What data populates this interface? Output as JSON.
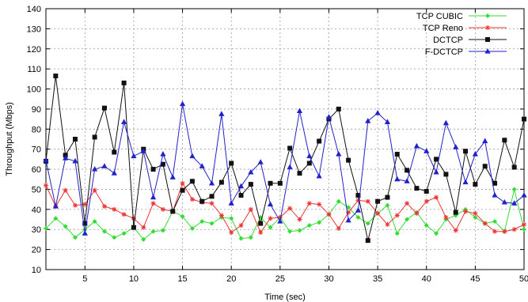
{
  "chart_data": {
    "type": "line",
    "xlabel": "Time (sec)",
    "ylabel": "Throughput (Mbps)",
    "xlim": [
      1,
      50
    ],
    "ylim": [
      10,
      140
    ],
    "xticks": [
      5,
      10,
      15,
      20,
      25,
      30,
      35,
      40,
      45,
      50
    ],
    "yticks": [
      10,
      20,
      30,
      40,
      50,
      60,
      70,
      80,
      90,
      100,
      110,
      120,
      130,
      140
    ],
    "grid": true,
    "legend_position": "top-right",
    "x": [
      1,
      2,
      3,
      4,
      5,
      6,
      7,
      8,
      9,
      10,
      11,
      12,
      13,
      14,
      15,
      16,
      17,
      18,
      19,
      20,
      21,
      22,
      23,
      24,
      25,
      26,
      27,
      28,
      29,
      30,
      31,
      32,
      33,
      34,
      35,
      36,
      37,
      38,
      39,
      40,
      41,
      42,
      43,
      44,
      45,
      46,
      47,
      48,
      49,
      50
    ],
    "series": [
      {
        "name": "TCP CUBIC",
        "color": "#33dd33",
        "marker": "diamond",
        "values": [
          30.5,
          35.5,
          31.5,
          26,
          30,
          34,
          29,
          26,
          28,
          31,
          25,
          29,
          29.5,
          39,
          36.5,
          30.5,
          34,
          33,
          36,
          35.5,
          25.5,
          26,
          36,
          31,
          36,
          29,
          29.5,
          32,
          33.5,
          37.5,
          44,
          41,
          36,
          33,
          38,
          42,
          28,
          35,
          38.5,
          32,
          28,
          35,
          37,
          40,
          36,
          33,
          34,
          29,
          50,
          30
        ]
      },
      {
        "name": "TCP Reno",
        "color": "#ee3333",
        "marker": "star",
        "values": [
          52,
          41.5,
          49.5,
          42,
          42.5,
          49.5,
          41.5,
          40,
          37.5,
          35.5,
          31,
          43,
          40,
          39,
          53,
          45,
          43.5,
          43,
          37,
          28.5,
          32,
          40,
          28.5,
          35.5,
          36,
          40.5,
          35,
          43,
          42.5,
          37.5,
          30.5,
          38.5,
          44.5,
          44,
          38,
          32.5,
          37,
          43,
          38,
          44,
          46,
          36,
          29.5,
          39,
          38,
          33,
          29,
          29,
          30,
          32.5
        ]
      },
      {
        "name": "DCTCP",
        "color": "#111111",
        "marker": "square",
        "values": [
          64,
          106.5,
          67,
          75,
          33,
          76,
          90.5,
          68.5,
          103,
          31,
          70,
          60,
          62.5,
          39,
          49.5,
          54,
          44,
          46.5,
          53.5,
          63,
          47,
          52.5,
          33,
          53,
          53,
          70.5,
          58,
          63,
          74,
          85,
          90,
          64.5,
          47,
          24.5,
          44,
          46,
          67.5,
          59.5,
          50.5,
          49,
          65,
          57.5,
          38.5,
          69,
          52.5,
          61.5,
          53,
          74.5,
          61,
          85
        ]
      },
      {
        "name": "F-DCTCP",
        "color": "#2222cc",
        "marker": "triangle",
        "values": [
          64.5,
          41.5,
          65.5,
          64,
          28,
          60,
          61.5,
          58,
          83.5,
          66.5,
          69,
          46,
          67.5,
          56,
          92.5,
          66.5,
          61.5,
          53,
          87.5,
          43,
          51.5,
          58.5,
          63.5,
          42.5,
          34,
          61,
          89,
          66.5,
          56.5,
          86,
          67.5,
          34.5,
          39.5,
          84,
          88,
          83.5,
          55,
          54,
          71.5,
          69,
          58.5,
          83,
          71,
          53.5,
          67.5,
          74,
          47,
          43.5,
          43,
          47
        ]
      }
    ]
  }
}
